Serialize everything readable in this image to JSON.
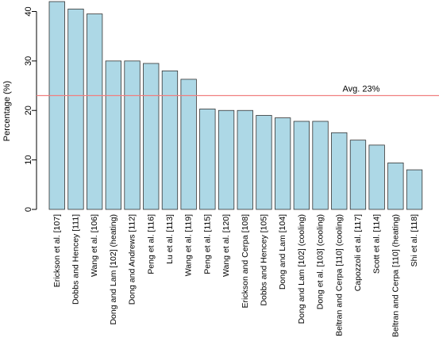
{
  "chart_data": {
    "type": "bar",
    "title": "",
    "xlabel": "",
    "ylabel": "Percentage (%)",
    "ylim": [
      0,
      42
    ],
    "yticks": [
      0,
      10,
      20,
      30,
      40
    ],
    "grid": false,
    "bar_color": "#add8e6",
    "bar_edge_color": "#333333",
    "reference_line": {
      "value": 23,
      "label": "Avg. 23%",
      "color": "#f08080"
    },
    "categories": [
      "Erickson et al. [107]",
      "Dobbs and Hencey [111]",
      "Wang et al. [106]",
      "Dong and Lam [102] (heating)",
      "Dong and Andrews [112]",
      "Peng et al. [116]",
      "Lu et al. [113]",
      "Wang et al. [119]",
      "Peng et al. [115]",
      "Wang et al. [120]",
      "Erickson and Cerpa [108]",
      "Dobbs and Hencey [105]",
      "Dong and Lam [104]",
      "Dong and Lam [102] (cooling)",
      "Dong et al. [103] (cooling)",
      "Beltran and Cerpa [110] (cooling)",
      "Capozzoli et al. [117]",
      "Scott et al. [114]",
      "Beltran and Cerpa [110] (heating)",
      "Shi et al. [118]"
    ],
    "values": [
      42,
      40.5,
      39.5,
      30,
      30,
      29.5,
      28,
      26.3,
      20.3,
      20,
      20,
      19,
      18.5,
      17.8,
      17.8,
      15.5,
      14,
      13,
      9.4,
      8
    ]
  }
}
